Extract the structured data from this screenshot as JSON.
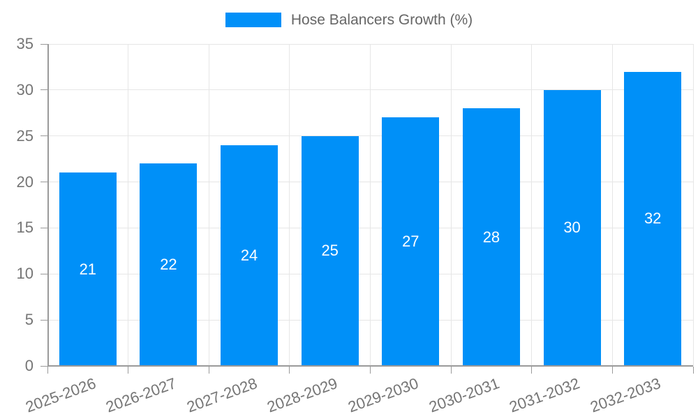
{
  "legend": {
    "label": "Hose Balancers Growth (%)"
  },
  "colors": {
    "bar": "#0090f8",
    "bar_value_label": "#ffffff",
    "axis": "#9a9a9a",
    "grid": "#e6e6e6",
    "tick_label": "#757575",
    "legend_text": "#666666",
    "background": "#ffffff"
  },
  "chart_data": {
    "type": "bar",
    "title": "Hose Balancers Growth (%)",
    "categories": [
      "2025-2026",
      "2026-2027",
      "2027-2028",
      "2028-2029",
      "2029-2030",
      "2030-2031",
      "2031-2032",
      "2032-2033"
    ],
    "values": [
      21,
      22,
      24,
      25,
      27,
      28,
      30,
      32
    ],
    "series": [
      {
        "name": "Hose Balancers Growth (%)",
        "values": [
          21,
          22,
          24,
          25,
          27,
          28,
          30,
          32
        ]
      }
    ],
    "xlabel": "",
    "ylabel": "",
    "ylim": [
      0,
      35
    ],
    "yticks": [
      0,
      5,
      10,
      15,
      20,
      25,
      30,
      35
    ],
    "grid": true,
    "legend_position": "top-center",
    "value_labels": "inside-bar-centered-white",
    "x_tick_label_rotation_deg": -20
  }
}
